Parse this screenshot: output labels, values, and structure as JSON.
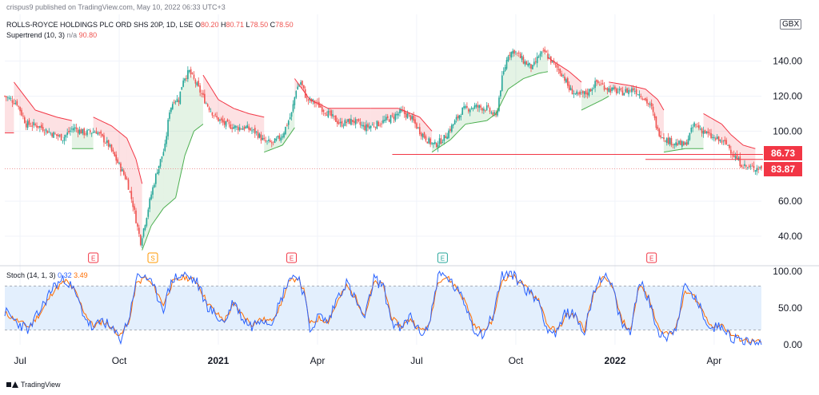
{
  "header": {
    "publisher": "crispus9 published on TradingView.com, May 10, 2022 06:33 UTC+3",
    "symbol_line": "ROLLS-ROYCE HOLDINGS PLC ORD SHS 20P, 1D, LSE",
    "ohlc": {
      "o_label": "O",
      "o": "80.20",
      "h_label": "H",
      "h": "80.71",
      "l_label": "L",
      "l": "78.50",
      "c_label": "C",
      "c": "78.50"
    },
    "supertrend_label": "Supertrend (10, 3)",
    "supertrend_na": "n/a",
    "supertrend_value": "90.80",
    "currency": "GBX"
  },
  "stoch": {
    "label": "Stoch (14, 1, 3)",
    "k": "0.32",
    "d": "3.49"
  },
  "footer": {
    "brand": "TradingView"
  },
  "price_tags": [
    "86.73",
    "83.87"
  ],
  "colors": {
    "up": "#26a69a",
    "down": "#ef5350",
    "st_up": "#4caf50",
    "st_down": "#f23645",
    "k": "#2962ff",
    "d": "#ff6d00",
    "band": "#e3effd",
    "tag": "#f23645"
  },
  "chart_data": [
    {
      "type": "candlestick",
      "title": "ROLLS-ROYCE HOLDINGS PLC ORD SHS 20P, 1D, LSE",
      "y_ticks": [
        40,
        60,
        100,
        120,
        140
      ],
      "y_tick_labels": [
        "40.00",
        "60.00",
        "100.00",
        "120.00",
        "140.00"
      ],
      "ylim": [
        30,
        153
      ],
      "x_ticks": [
        "Jul",
        "Oct",
        "2021",
        "Apr",
        "Jul",
        "Oct",
        "2022",
        "Apr"
      ],
      "x_tick_bold": [
        false,
        false,
        true,
        false,
        false,
        false,
        true,
        false
      ],
      "x_tick_index": [
        10,
        75,
        140,
        205,
        270,
        335,
        400,
        465
      ],
      "n_bars": 497,
      "close_path": [
        [
          0,
          120
        ],
        [
          8,
          116
        ],
        [
          14,
          104
        ],
        [
          22,
          103
        ],
        [
          30,
          99
        ],
        [
          38,
          96
        ],
        [
          45,
          102
        ],
        [
          52,
          99
        ],
        [
          60,
          100
        ],
        [
          68,
          92
        ],
        [
          74,
          82
        ],
        [
          80,
          72
        ],
        [
          84,
          58
        ],
        [
          87,
          45
        ],
        [
          89,
          37
        ],
        [
          92,
          48
        ],
        [
          96,
          64
        ],
        [
          100,
          78
        ],
        [
          105,
          91
        ],
        [
          108,
          112
        ],
        [
          111,
          118
        ],
        [
          114,
          118
        ],
        [
          117,
          130
        ],
        [
          121,
          134
        ],
        [
          126,
          126
        ],
        [
          132,
          116
        ],
        [
          138,
          108
        ],
        [
          144,
          104
        ],
        [
          152,
          102
        ],
        [
          158,
          102
        ],
        [
          165,
          99
        ],
        [
          170,
          94
        ],
        [
          176,
          93
        ],
        [
          182,
          98
        ],
        [
          188,
          110
        ],
        [
          191,
          124
        ],
        [
          194,
          128
        ],
        [
          198,
          118
        ],
        [
          204,
          116
        ],
        [
          212,
          110
        ],
        [
          220,
          104
        ],
        [
          228,
          106
        ],
        [
          236,
          102
        ],
        [
          244,
          104
        ],
        [
          252,
          107
        ],
        [
          260,
          111
        ],
        [
          266,
          108
        ],
        [
          272,
          100
        ],
        [
          278,
          94
        ],
        [
          282,
          92
        ],
        [
          288,
          96
        ],
        [
          294,
          104
        ],
        [
          300,
          112
        ],
        [
          308,
          114
        ],
        [
          316,
          113
        ],
        [
          322,
          108
        ],
        [
          326,
          130
        ],
        [
          330,
          144
        ],
        [
          334,
          146
        ],
        [
          340,
          140
        ],
        [
          346,
          136
        ],
        [
          350,
          143
        ],
        [
          354,
          145
        ],
        [
          360,
          138
        ],
        [
          366,
          132
        ],
        [
          370,
          124
        ],
        [
          376,
          120
        ],
        [
          382,
          122
        ],
        [
          388,
          128
        ],
        [
          396,
          124
        ],
        [
          404,
          122
        ],
        [
          412,
          124
        ],
        [
          418,
          120
        ],
        [
          424,
          113
        ],
        [
          428,
          100
        ],
        [
          434,
          95
        ],
        [
          440,
          93
        ],
        [
          446,
          92
        ],
        [
          452,
          104
        ],
        [
          458,
          100
        ],
        [
          464,
          96
        ],
        [
          470,
          94
        ],
        [
          474,
          92
        ],
        [
          478,
          86
        ],
        [
          482,
          82
        ],
        [
          485,
          80
        ],
        [
          488,
          79
        ],
        [
          492,
          79
        ]
      ],
      "supertrend_path": [
        [
          0,
          99,
          "down"
        ],
        [
          6,
          99,
          "down"
        ],
        [
          6,
          128,
          "down"
        ],
        [
          20,
          112,
          "down"
        ],
        [
          34,
          108,
          "down"
        ],
        [
          44,
          106,
          "down"
        ],
        [
          44,
          90,
          "up"
        ],
        [
          58,
          90,
          "up"
        ],
        [
          58,
          108,
          "down"
        ],
        [
          70,
          103,
          "down"
        ],
        [
          80,
          96,
          "down"
        ],
        [
          86,
          84,
          "down"
        ],
        [
          90,
          70,
          "down"
        ],
        [
          90,
          32,
          "up"
        ],
        [
          96,
          46,
          "up"
        ],
        [
          104,
          56,
          "up"
        ],
        [
          112,
          62,
          "up"
        ],
        [
          118,
          86,
          "up"
        ],
        [
          124,
          100,
          "up"
        ],
        [
          130,
          104,
          "up"
        ],
        [
          130,
          132,
          "down"
        ],
        [
          140,
          118,
          "down"
        ],
        [
          150,
          113,
          "down"
        ],
        [
          160,
          110,
          "down"
        ],
        [
          170,
          108,
          "down"
        ],
        [
          170,
          88,
          "up"
        ],
        [
          182,
          92,
          "up"
        ],
        [
          190,
          102,
          "up"
        ],
        [
          190,
          130,
          "down"
        ],
        [
          200,
          118,
          "down"
        ],
        [
          212,
          113,
          "down"
        ],
        [
          240,
          113,
          "down"
        ],
        [
          258,
          113,
          "down"
        ],
        [
          272,
          108,
          "down"
        ],
        [
          280,
          100,
          "down"
        ],
        [
          280,
          88,
          "up"
        ],
        [
          292,
          95,
          "up"
        ],
        [
          302,
          104,
          "up"
        ],
        [
          316,
          106,
          "up"
        ],
        [
          322,
          110,
          "up"
        ],
        [
          330,
          124,
          "up"
        ],
        [
          340,
          130,
          "up"
        ],
        [
          350,
          133,
          "up"
        ],
        [
          356,
          134,
          "up"
        ],
        [
          356,
          142,
          "down"
        ],
        [
          370,
          134,
          "down"
        ],
        [
          378,
          128,
          "down"
        ],
        [
          378,
          112,
          "up"
        ],
        [
          392,
          118,
          "up"
        ],
        [
          396,
          120,
          "up"
        ],
        [
          396,
          128,
          "down"
        ],
        [
          410,
          126,
          "down"
        ],
        [
          420,
          124,
          "down"
        ],
        [
          428,
          118,
          "down"
        ],
        [
          432,
          112,
          "down"
        ],
        [
          432,
          88,
          "up"
        ],
        [
          446,
          90,
          "up"
        ],
        [
          458,
          90,
          "up"
        ],
        [
          458,
          110,
          "down"
        ],
        [
          470,
          104,
          "down"
        ],
        [
          476,
          98,
          "down"
        ],
        [
          484,
          92,
          "down"
        ],
        [
          492,
          90,
          "down"
        ]
      ],
      "horizontal_lines": [
        {
          "y": 86.73,
          "x_from": 254,
          "x_to": 497
        },
        {
          "y": 83.87,
          "x_from": 420,
          "x_to": 497
        },
        {
          "y": 78.5,
          "x_from": 0,
          "x_to": 497,
          "dotted": true
        }
      ],
      "event_markers": [
        {
          "x": 58,
          "label": "E",
          "color": "#f23645"
        },
        {
          "x": 97,
          "label": "S",
          "color": "#ff9800"
        },
        {
          "x": 188,
          "label": "E",
          "color": "#f23645"
        },
        {
          "x": 287,
          "label": "E",
          "color": "#26a69a"
        },
        {
          "x": 424,
          "label": "E",
          "color": "#f23645"
        }
      ]
    },
    {
      "type": "line",
      "title": "Stoch (14, 1, 3)",
      "ylim": [
        0,
        100
      ],
      "y_ticks": [
        0,
        50,
        100
      ],
      "y_tick_labels": [
        "0.00",
        "50.00",
        "100.00"
      ],
      "band": [
        20,
        80
      ],
      "k_path": [
        [
          0,
          45
        ],
        [
          8,
          30
        ],
        [
          16,
          20
        ],
        [
          24,
          50
        ],
        [
          32,
          80
        ],
        [
          40,
          90
        ],
        [
          46,
          70
        ],
        [
          52,
          40
        ],
        [
          58,
          20
        ],
        [
          64,
          35
        ],
        [
          70,
          20
        ],
        [
          76,
          8
        ],
        [
          82,
          40
        ],
        [
          86,
          90
        ],
        [
          92,
          95
        ],
        [
          98,
          75
        ],
        [
          104,
          50
        ],
        [
          110,
          90
        ],
        [
          118,
          95
        ],
        [
          126,
          85
        ],
        [
          132,
          55
        ],
        [
          138,
          40
        ],
        [
          144,
          30
        ],
        [
          150,
          60
        ],
        [
          156,
          35
        ],
        [
          162,
          25
        ],
        [
          168,
          38
        ],
        [
          174,
          30
        ],
        [
          180,
          55
        ],
        [
          186,
          90
        ],
        [
          192,
          95
        ],
        [
          196,
          70
        ],
        [
          200,
          20
        ],
        [
          206,
          40
        ],
        [
          212,
          30
        ],
        [
          218,
          65
        ],
        [
          224,
          85
        ],
        [
          230,
          60
        ],
        [
          236,
          35
        ],
        [
          242,
          90
        ],
        [
          248,
          80
        ],
        [
          254,
          30
        ],
        [
          260,
          20
        ],
        [
          266,
          40
        ],
        [
          272,
          15
        ],
        [
          278,
          25
        ],
        [
          284,
          95
        ],
        [
          290,
          92
        ],
        [
          296,
          75
        ],
        [
          302,
          55
        ],
        [
          308,
          20
        ],
        [
          314,
          15
        ],
        [
          320,
          40
        ],
        [
          326,
          95
        ],
        [
          332,
          98
        ],
        [
          338,
          85
        ],
        [
          344,
          70
        ],
        [
          350,
          60
        ],
        [
          356,
          20
        ],
        [
          362,
          15
        ],
        [
          368,
          45
        ],
        [
          374,
          40
        ],
        [
          380,
          15
        ],
        [
          386,
          75
        ],
        [
          392,
          95
        ],
        [
          398,
          80
        ],
        [
          404,
          30
        ],
        [
          410,
          15
        ],
        [
          416,
          90
        ],
        [
          422,
          60
        ],
        [
          428,
          20
        ],
        [
          434,
          10
        ],
        [
          440,
          25
        ],
        [
          446,
          80
        ],
        [
          452,
          65
        ],
        [
          458,
          40
        ],
        [
          464,
          20
        ],
        [
          470,
          30
        ],
        [
          476,
          10
        ],
        [
          482,
          5
        ],
        [
          488,
          6
        ],
        [
          492,
          0.32
        ]
      ],
      "d_path": [
        [
          0,
          43
        ],
        [
          8,
          33
        ],
        [
          16,
          24
        ],
        [
          24,
          45
        ],
        [
          32,
          74
        ],
        [
          40,
          87
        ],
        [
          46,
          73
        ],
        [
          52,
          45
        ],
        [
          58,
          25
        ],
        [
          64,
          32
        ],
        [
          70,
          24
        ],
        [
          76,
          12
        ],
        [
          82,
          35
        ],
        [
          86,
          82
        ],
        [
          92,
          92
        ],
        [
          98,
          78
        ],
        [
          104,
          55
        ],
        [
          110,
          85
        ],
        [
          118,
          92
        ],
        [
          126,
          86
        ],
        [
          132,
          60
        ],
        [
          138,
          44
        ],
        [
          144,
          33
        ],
        [
          150,
          55
        ],
        [
          156,
          40
        ],
        [
          162,
          28
        ],
        [
          168,
          35
        ],
        [
          174,
          32
        ],
        [
          180,
          50
        ],
        [
          186,
          84
        ],
        [
          192,
          92
        ],
        [
          196,
          74
        ],
        [
          200,
          28
        ],
        [
          206,
          36
        ],
        [
          212,
          32
        ],
        [
          218,
          58
        ],
        [
          224,
          80
        ],
        [
          230,
          64
        ],
        [
          236,
          40
        ],
        [
          242,
          84
        ],
        [
          248,
          82
        ],
        [
          254,
          35
        ],
        [
          260,
          24
        ],
        [
          266,
          36
        ],
        [
          272,
          20
        ],
        [
          278,
          24
        ],
        [
          284,
          88
        ],
        [
          290,
          92
        ],
        [
          296,
          78
        ],
        [
          302,
          58
        ],
        [
          308,
          25
        ],
        [
          314,
          18
        ],
        [
          320,
          35
        ],
        [
          326,
          88
        ],
        [
          332,
          95
        ],
        [
          338,
          86
        ],
        [
          344,
          72
        ],
        [
          350,
          62
        ],
        [
          356,
          26
        ],
        [
          362,
          18
        ],
        [
          368,
          40
        ],
        [
          374,
          40
        ],
        [
          380,
          20
        ],
        [
          386,
          68
        ],
        [
          392,
          90
        ],
        [
          398,
          82
        ],
        [
          404,
          36
        ],
        [
          410,
          18
        ],
        [
          416,
          82
        ],
        [
          422,
          64
        ],
        [
          428,
          26
        ],
        [
          434,
          14
        ],
        [
          440,
          22
        ],
        [
          446,
          72
        ],
        [
          452,
          66
        ],
        [
          458,
          44
        ],
        [
          464,
          24
        ],
        [
          470,
          28
        ],
        [
          476,
          14
        ],
        [
          482,
          8
        ],
        [
          488,
          6
        ],
        [
          492,
          3.49
        ]
      ]
    }
  ]
}
